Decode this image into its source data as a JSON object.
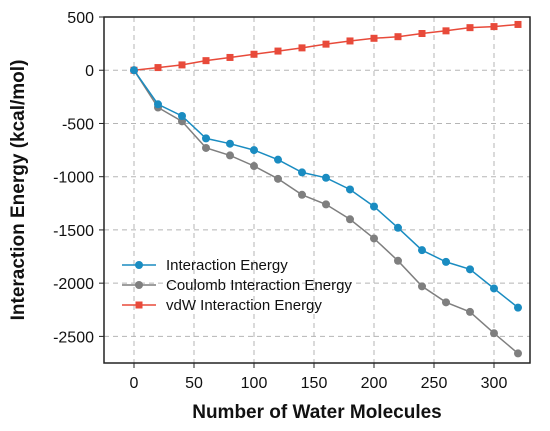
{
  "chart_data": {
    "type": "line",
    "title": "",
    "xlabel": "Number of Water Molecules",
    "ylabel": "Interaction Energy (kcal/mol)",
    "xlim": [
      -25,
      330
    ],
    "ylim": [
      -2750,
      500
    ],
    "xticks": [
      0,
      50,
      100,
      150,
      200,
      250,
      300
    ],
    "yticks": [
      500,
      0,
      -500,
      -1000,
      -1500,
      -2000,
      -2500
    ],
    "grid": true,
    "legend_position": "bottom-left",
    "x": [
      0,
      20,
      40,
      60,
      80,
      100,
      120,
      140,
      160,
      180,
      200,
      220,
      240,
      260,
      280,
      300,
      320
    ],
    "series": [
      {
        "name": "Interaction Energy",
        "color": "#1a8cc1",
        "marker": "circle",
        "values": [
          0,
          -320,
          -430,
          -640,
          -690,
          -750,
          -840,
          -960,
          -1010,
          -1120,
          -1280,
          -1480,
          -1690,
          -1800,
          -1870,
          -2050,
          -2230
        ]
      },
      {
        "name": "Coulomb Interaction Energy",
        "color": "#7f7f7f",
        "marker": "circle",
        "values": [
          0,
          -350,
          -480,
          -730,
          -800,
          -900,
          -1020,
          -1170,
          -1260,
          -1400,
          -1580,
          -1790,
          -2030,
          -2180,
          -2270,
          -2470,
          -2660
        ]
      },
      {
        "name": "vdW Interaction Energy",
        "color": "#e84a3a",
        "marker": "square",
        "values": [
          0,
          25,
          50,
          90,
          120,
          150,
          180,
          210,
          245,
          275,
          300,
          315,
          345,
          370,
          400,
          410,
          430
        ]
      }
    ]
  }
}
